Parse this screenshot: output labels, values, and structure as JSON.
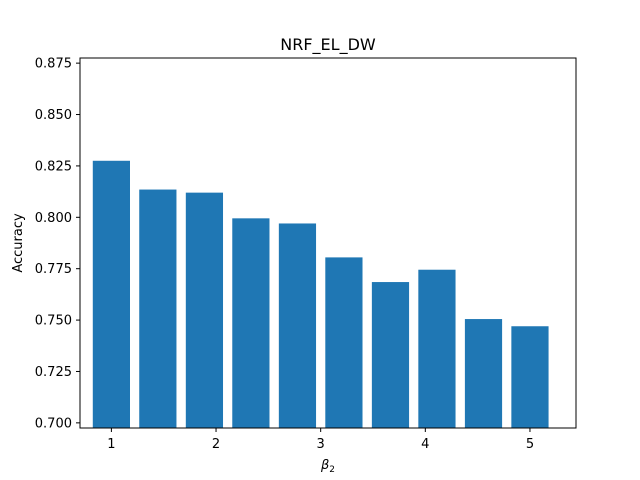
{
  "chart_data": {
    "type": "bar",
    "title": "NRF_EL_DW",
    "xlabel_main": "β",
    "xlabel_sub": "2",
    "ylabel": "Accuracy",
    "x": [
      1.0,
      1.444,
      1.889,
      2.333,
      2.778,
      3.222,
      3.667,
      4.111,
      4.556,
      5.0
    ],
    "values": [
      0.8275,
      0.8135,
      0.812,
      0.7995,
      0.797,
      0.7805,
      0.7685,
      0.7745,
      0.7505,
      0.747
    ],
    "bar_color": "#1f77b4",
    "xlim": [
      0.7,
      5.44
    ],
    "ylim": [
      0.6975,
      0.8775
    ],
    "xticks": [
      1,
      2,
      3,
      4,
      5
    ],
    "xtick_labels": [
      "1",
      "2",
      "3",
      "4",
      "5"
    ],
    "yticks": [
      0.7,
      0.725,
      0.75,
      0.775,
      0.8,
      0.825,
      0.85,
      0.875
    ],
    "ytick_labels": [
      "0.700",
      "0.725",
      "0.750",
      "0.775",
      "0.800",
      "0.825",
      "0.850",
      "0.875"
    ],
    "grid": false,
    "legend": "none"
  }
}
